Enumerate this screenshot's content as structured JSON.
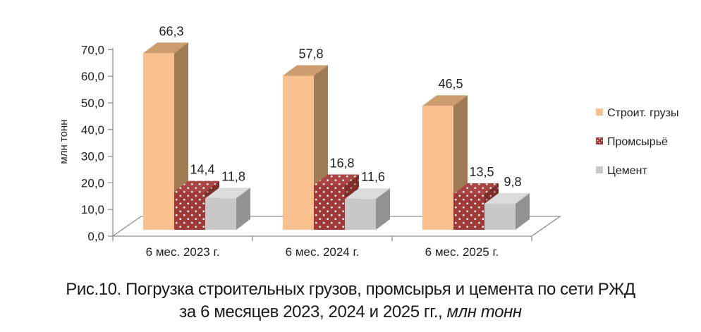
{
  "chart_data": {
    "type": "bar",
    "variant": "3d-clustered",
    "title": "",
    "categories": [
      "6 мес. 2023 г.",
      "6 мес. 2024 г.",
      "6 мес. 2025 г."
    ],
    "series": [
      {
        "name": "Строит. грузы",
        "values": [
          66.3,
          57.8,
          46.5
        ],
        "labels": [
          "66,3",
          "57,8",
          "46,5"
        ],
        "pattern": "solid",
        "color": "#FAC08F",
        "color_top": "#CE9D6E",
        "color_side": "#9F7B55"
      },
      {
        "name": "Промсырьё",
        "values": [
          14.4,
          16.8,
          13.5
        ],
        "labels": [
          "14,4",
          "16,8",
          "13,5"
        ],
        "pattern": "dots",
        "color": "#9E3A37",
        "color_top": "#A94542",
        "color_side": "#7C2E2B",
        "dot_color": "#FFFFFF"
      },
      {
        "name": "Цемент",
        "values": [
          11.8,
          11.6,
          9.8
        ],
        "labels": [
          "11,8",
          "11,6",
          "9,8"
        ],
        "pattern": "solid",
        "color": "#C8C8C8",
        "color_top": "#DBDBDB",
        "color_side": "#929292"
      }
    ],
    "xlabel": "",
    "ylabel": "млн тонн",
    "ylim": [
      0,
      70
    ],
    "ytick_step": 10,
    "ytick_labels": [
      "0,0",
      "10,0",
      "20,0",
      "30,0",
      "40,0",
      "50,0",
      "60,0",
      "70,0"
    ],
    "grid": false,
    "legend_position": "right",
    "decimal_separator": ",",
    "axis_color": "#8F8F8F",
    "text_color": "#1F1F1F"
  },
  "caption": {
    "line1": "Рис.10. Погрузка строительных грузов, промсырья и цемента по сети РЖД",
    "line2_prefix": "за 6 месяцев 2023, 2024 и 2025 гг., ",
    "line2_italic": "млн тонн"
  }
}
